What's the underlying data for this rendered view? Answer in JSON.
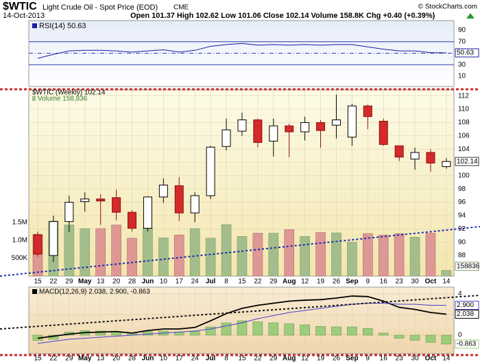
{
  "header": {
    "symbol": "$WTIC",
    "name": "Light Crude Oil - Spot Price (EOD)",
    "exchange": "CME",
    "copyright": "© StockCharts.com",
    "date": "14-Oct-2013",
    "quote": "Open 101.37  High 102.62  Low 101.06  Close 102.14  Volume 158.8K  Chg +0.40 (+0.39%)"
  },
  "chart_data": [
    {
      "type": "line",
      "title": "RSI(14) 50.63",
      "color": "#1a1aa0",
      "values": [
        41,
        48,
        54,
        55,
        55,
        54,
        52,
        54,
        56,
        52,
        55,
        62,
        65,
        67,
        64,
        65,
        64,
        65,
        64,
        65,
        65,
        61,
        57,
        54,
        54,
        51,
        50.63
      ],
      "last_label": "50.63",
      "ylim": [
        -7.9,
        106.7
      ],
      "yticks": [
        10,
        30,
        50,
        70,
        90
      ],
      "reference_lines": [
        30,
        50,
        70
      ]
    },
    {
      "type": "candlestick",
      "title": "$WTIC (Weekly) 102.14",
      "categories": [
        "15",
        "22",
        "29",
        "May",
        "13",
        "20",
        "28",
        "Jun",
        "10",
        "17",
        "24",
        "Jul",
        "8",
        "15",
        "22",
        "29",
        "Aug",
        "12",
        "19",
        "26",
        "Sep",
        "9",
        "16",
        "23",
        "30",
        "Oct",
        "14"
      ],
      "open": [
        91.1,
        88.0,
        93.1,
        96.1,
        96.5,
        96.7,
        94.5,
        92.1,
        96.8,
        98.5,
        94.4,
        97.0,
        104.4,
        106.7,
        108.4,
        105.2,
        107.5,
        106.6,
        108.0,
        107.6,
        105.8,
        110.5,
        108.2,
        104.5,
        102.5,
        103.5,
        101.37
      ],
      "high": [
        91.6,
        94.0,
        97.0,
        97.5,
        97.2,
        97.9,
        94.8,
        96.9,
        99.6,
        99.8,
        97.5,
        104.5,
        108.6,
        109.5,
        108.6,
        108.6,
        107.8,
        108.9,
        108.4,
        112.2,
        110.8,
        110.7,
        108.6,
        104.5,
        104.2,
        104.0,
        102.62
      ],
      "low": [
        87.8,
        87.0,
        91.5,
        94.6,
        92.6,
        93.3,
        91.6,
        91.6,
        95.9,
        93.2,
        93.0,
        96.5,
        103.8,
        106.0,
        104.3,
        102.9,
        102.8,
        105.3,
        104.2,
        105.6,
        104.5,
        107.0,
        104.5,
        102.2,
        100.9,
        100.6,
        101.06
      ],
      "close": [
        88.2,
        93.1,
        96.0,
        96.5,
        96.2,
        94.5,
        92.1,
        96.8,
        98.6,
        94.4,
        97.0,
        104.3,
        106.9,
        108.4,
        105.0,
        107.5,
        106.6,
        108.0,
        106.8,
        108.4,
        110.5,
        108.9,
        104.7,
        102.8,
        103.5,
        101.9,
        102.14
      ],
      "last_label": "102.14",
      "up_color": "#ffffff",
      "down_color": "#d42a2a",
      "ylim": [
        84.9,
        112.9
      ],
      "yticks": [
        88,
        90,
        92,
        94,
        96,
        98,
        100,
        102,
        104,
        106,
        108,
        110,
        112
      ],
      "grid": true,
      "volume": {
        "label": "Volume 158,836",
        "values": [
          1170000,
          1540000,
          1430000,
          1330000,
          1330000,
          1430000,
          1060000,
          1350000,
          1070000,
          1150000,
          1330000,
          1060000,
          1440000,
          1110000,
          1200000,
          1200000,
          1300000,
          1110000,
          1220000,
          1210000,
          950000,
          1190000,
          1150000,
          1190000,
          1090000,
          1200000,
          158836
        ],
        "last_label": "158836",
        "up_color": "#a3be8c",
        "down_color": "#dd9896",
        "ylim": [
          0,
          5210000
        ],
        "yticks": [
          {
            "value": 500000,
            "label": "500K"
          },
          {
            "value": 1000000,
            "label": "1.0M"
          },
          {
            "value": 1500000,
            "label": "1.5M"
          }
        ]
      }
    },
    {
      "type": "macd",
      "title": "MACD(12,26,9) 2.038, 2.900, -0.863",
      "categories": [
        "15",
        "22",
        "29",
        "May",
        "13",
        "20",
        "28",
        "Jun",
        "10",
        "17",
        "24",
        "Jul",
        "8",
        "15",
        "22",
        "29",
        "Aug",
        "12",
        "19",
        "26",
        "Sep",
        "9",
        "16",
        "23",
        "30",
        "Oct",
        "14"
      ],
      "series": [
        {
          "kind": "line",
          "color": "#000000",
          "values": [
            -0.3,
            -0.1,
            0.1,
            0.25,
            0.3,
            0.35,
            0.2,
            0.45,
            0.6,
            0.6,
            0.75,
            1.4,
            2.1,
            2.6,
            2.9,
            3.1,
            3.3,
            3.4,
            3.45,
            3.6,
            3.8,
            3.75,
            3.3,
            2.7,
            2.5,
            2.2,
            2.038
          ],
          "last_label": "2.038"
        },
        {
          "kind": "line",
          "color": "#4a3fd0",
          "values": [
            -0.8,
            -0.6,
            -0.4,
            -0.3,
            -0.2,
            -0.1,
            0.0,
            0.1,
            0.2,
            0.3,
            0.4,
            0.6,
            0.9,
            1.2,
            1.6,
            1.9,
            2.2,
            2.4,
            2.6,
            2.8,
            3.0,
            3.1,
            3.1,
            3.0,
            3.0,
            2.9,
            2.9
          ],
          "last_label": "2.900"
        },
        {
          "kind": "bar",
          "color": "#9dcc7a",
          "values": [
            -0.5,
            -0.4,
            0.3,
            0.45,
            0.4,
            0.35,
            0.2,
            0.35,
            0.4,
            0.3,
            0.35,
            0.8,
            1.2,
            1.4,
            1.3,
            1.2,
            1.1,
            1.0,
            0.85,
            0.8,
            0.8,
            0.65,
            0.2,
            -0.3,
            -0.5,
            -0.7,
            -0.863
          ],
          "last_label": "-0.863"
        }
      ],
      "ylim": [
        -1.8,
        4.67
      ],
      "yticks": [
        0,
        2,
        4
      ]
    }
  ]
}
